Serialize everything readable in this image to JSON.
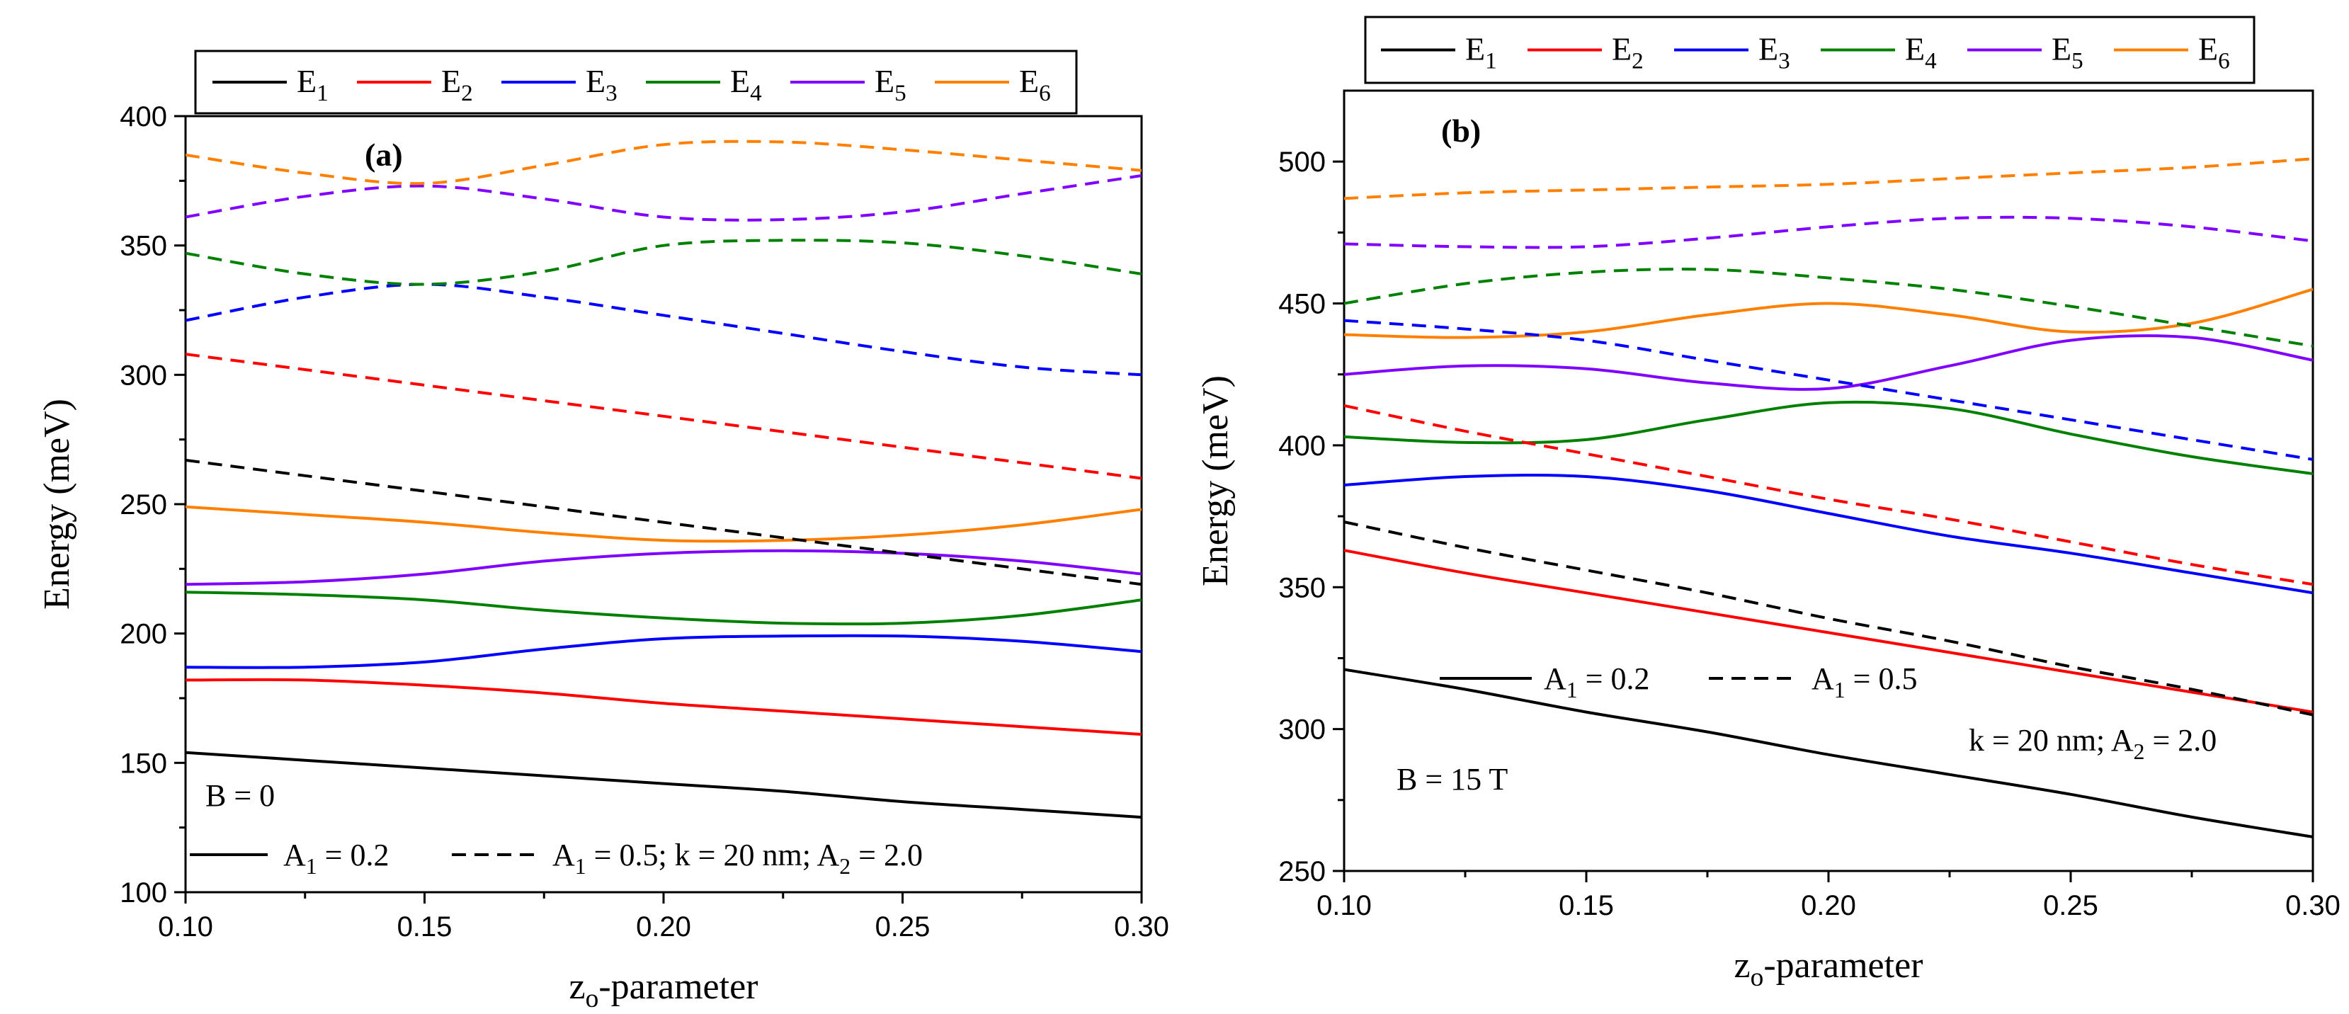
{
  "chart_data": [
    {
      "id": "a",
      "type": "line",
      "panel_label": "(a)",
      "xlabel": "zo-parameter",
      "xlabel_main": "z",
      "xlabel_sub": "o",
      "xlabel_rest": "-parameter",
      "ylabel": "Energy (meV)",
      "xlim": [
        0.1,
        0.3
      ],
      "ylim": [
        100,
        400
      ],
      "xticks": [
        "0.10",
        "0.15",
        "0.20",
        "0.25",
        "0.30"
      ],
      "yticks": [
        "100",
        "150",
        "200",
        "250",
        "300",
        "350",
        "400"
      ],
      "legend": {
        "placement": "top",
        "entries": [
          {
            "label": "E1",
            "main": "E",
            "sub": "1",
            "color": "#000000"
          },
          {
            "label": "E2",
            "main": "E",
            "sub": "2",
            "color": "#ff0000"
          },
          {
            "label": "E3",
            "main": "E",
            "sub": "3",
            "color": "#0000ff"
          },
          {
            "label": "E4",
            "main": "E",
            "sub": "4",
            "color": "#008000"
          },
          {
            "label": "E5",
            "main": "E",
            "sub": "5",
            "color": "#8000ff"
          },
          {
            "label": "E6",
            "main": "E",
            "sub": "6",
            "color": "#ff8000"
          }
        ]
      },
      "annotations": {
        "field": "B = 0",
        "solid_key": {
          "main": "A",
          "sub": "1",
          "rest": " = 0.2"
        },
        "dashed_key": {
          "main": "A",
          "sub": "1",
          "rest": " = 0.5; k = 20 nm; A",
          "sub2": "2",
          "rest2": " = 2.0"
        }
      },
      "x": [
        0.1,
        0.125,
        0.15,
        0.175,
        0.2,
        0.225,
        0.25,
        0.275,
        0.3
      ],
      "series": [
        {
          "name": "E1, A1 = 0.2",
          "level": 1,
          "style": "solid",
          "values": [
            154,
            151,
            148,
            145,
            142,
            139,
            135,
            132,
            129
          ]
        },
        {
          "name": "E2, A1 = 0.2",
          "level": 2,
          "style": "solid",
          "values": [
            182,
            182,
            180,
            177,
            173,
            170,
            167,
            164,
            161
          ]
        },
        {
          "name": "E3, A1 = 0.2",
          "level": 3,
          "style": "solid",
          "values": [
            187,
            187,
            189,
            194,
            198,
            199,
            199,
            197,
            193
          ]
        },
        {
          "name": "E4, A1 = 0.2",
          "level": 4,
          "style": "solid",
          "values": [
            216,
            215,
            213,
            209,
            206,
            204,
            204,
            207,
            213
          ]
        },
        {
          "name": "E5, A1 = 0.2",
          "level": 5,
          "style": "solid",
          "values": [
            219,
            220,
            223,
            228,
            231,
            232,
            231,
            228,
            223
          ]
        },
        {
          "name": "E6, A1 = 0.2",
          "level": 6,
          "style": "solid",
          "values": [
            249,
            246,
            243,
            239,
            236,
            236,
            238,
            242,
            248
          ]
        },
        {
          "name": "E1, A1 = 0.5",
          "level": 1,
          "style": "dashed",
          "values": [
            267,
            261,
            255,
            249,
            243,
            237,
            231,
            225,
            219
          ]
        },
        {
          "name": "E2, A1 = 0.5",
          "level": 2,
          "style": "dashed",
          "values": [
            308,
            302,
            296,
            290,
            284,
            278,
            272,
            266,
            260
          ]
        },
        {
          "name": "E3, A1 = 0.5",
          "level": 3,
          "style": "dashed",
          "values": [
            321,
            330,
            335,
            330,
            323,
            316,
            309,
            303,
            300
          ]
        },
        {
          "name": "E4, A1 = 0.5",
          "level": 4,
          "style": "dashed",
          "values": [
            347,
            339,
            335,
            340,
            350,
            352,
            351,
            346,
            339
          ]
        },
        {
          "name": "E5, A1 = 0.5",
          "level": 5,
          "style": "dashed",
          "values": [
            361,
            369,
            373,
            368,
            361,
            360,
            363,
            370,
            377
          ]
        },
        {
          "name": "E6, A1 = 0.5",
          "level": 6,
          "style": "dashed",
          "values": [
            385,
            378,
            374,
            381,
            389,
            390,
            387,
            383,
            379
          ]
        }
      ]
    },
    {
      "id": "b",
      "type": "line",
      "panel_label": "(b)",
      "xlabel": "zo-parameter",
      "xlabel_main": "z",
      "xlabel_sub": "o",
      "xlabel_rest": "-parameter",
      "ylabel": "Energy (meV)",
      "xlim": [
        0.1,
        0.3
      ],
      "ylim": [
        250,
        525
      ],
      "xticks": [
        "0.10",
        "0.15",
        "0.20",
        "0.25",
        "0.30"
      ],
      "yticks": [
        "250",
        "300",
        "350",
        "400",
        "450",
        "500"
      ],
      "legend": {
        "placement": "top",
        "entries": [
          {
            "label": "E1",
            "main": "E",
            "sub": "1",
            "color": "#000000"
          },
          {
            "label": "E2",
            "main": "E",
            "sub": "2",
            "color": "#ff0000"
          },
          {
            "label": "E3",
            "main": "E",
            "sub": "3",
            "color": "#0000ff"
          },
          {
            "label": "E4",
            "main": "E",
            "sub": "4",
            "color": "#008000"
          },
          {
            "label": "E5",
            "main": "E",
            "sub": "5",
            "color": "#8000ff"
          },
          {
            "label": "E6",
            "main": "E",
            "sub": "6",
            "color": "#ff8000"
          }
        ]
      },
      "annotations": {
        "field": "B = 15 T",
        "solid_key": {
          "main": "A",
          "sub": "1",
          "rest": " = 0.2"
        },
        "dashed_key": {
          "main": "A",
          "sub": "1",
          "rest": " = 0.5"
        },
        "params": {
          "main": "k = 20 nm; A",
          "sub": "2",
          "rest": " = 2.0"
        }
      },
      "x": [
        0.1,
        0.125,
        0.15,
        0.175,
        0.2,
        0.225,
        0.25,
        0.275,
        0.3
      ],
      "series": [
        {
          "name": "E1, A1 = 0.2",
          "level": 1,
          "style": "solid",
          "values": [
            321,
            314,
            306,
            299,
            291,
            284,
            277,
            269,
            262
          ]
        },
        {
          "name": "E2, A1 = 0.2",
          "level": 2,
          "style": "solid",
          "values": [
            363,
            355,
            348,
            341,
            334,
            327,
            320,
            313,
            306
          ]
        },
        {
          "name": "E3, A1 = 0.2",
          "level": 3,
          "style": "solid",
          "values": [
            386,
            389,
            389,
            384,
            376,
            368,
            362,
            355,
            348
          ]
        },
        {
          "name": "E4, A1 = 0.2",
          "level": 4,
          "style": "solid",
          "values": [
            403,
            401,
            402,
            409,
            415,
            413,
            404,
            396,
            390
          ]
        },
        {
          "name": "E5, A1 = 0.2",
          "level": 5,
          "style": "solid",
          "values": [
            425,
            428,
            427,
            422,
            420,
            428,
            437,
            438,
            430
          ]
        },
        {
          "name": "E6, A1 = 0.2",
          "level": 6,
          "style": "solid",
          "values": [
            439,
            438,
            440,
            446,
            450,
            446,
            440,
            443,
            455
          ]
        },
        {
          "name": "E1, A1 = 0.5",
          "level": 1,
          "style": "dashed",
          "values": [
            373,
            364,
            356,
            348,
            339,
            331,
            322,
            314,
            305
          ]
        },
        {
          "name": "E2, A1 = 0.5",
          "level": 2,
          "style": "dashed",
          "values": [
            414,
            405,
            397,
            389,
            381,
            374,
            366,
            358,
            351
          ]
        },
        {
          "name": "E3, A1 = 0.5",
          "level": 3,
          "style": "dashed",
          "values": [
            444,
            441,
            437,
            430,
            423,
            416,
            409,
            402,
            395
          ]
        },
        {
          "name": "E4, A1 = 0.5",
          "level": 4,
          "style": "dashed",
          "values": [
            450,
            457,
            461,
            462,
            459,
            455,
            449,
            442,
            435
          ]
        },
        {
          "name": "E5, A1 = 0.5",
          "level": 5,
          "style": "dashed",
          "values": [
            471,
            470,
            470,
            473,
            477,
            480,
            480,
            477,
            472
          ]
        },
        {
          "name": "E6, A1 = 0.5",
          "level": 6,
          "style": "dashed",
          "values": [
            487,
            489,
            490,
            491,
            492,
            494,
            496,
            498,
            501
          ]
        }
      ]
    }
  ]
}
